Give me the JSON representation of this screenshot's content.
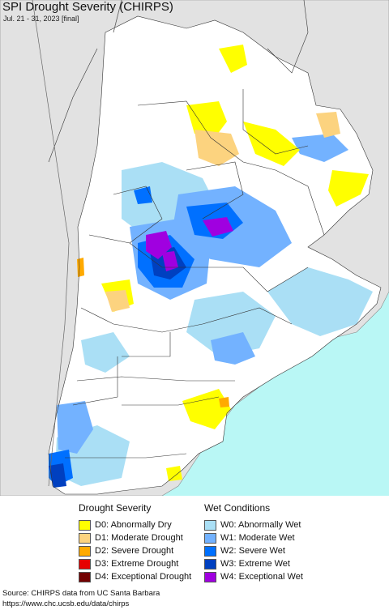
{
  "header": {
    "title": "SPI Drought Severity (CHIRPS)",
    "subtitle": "Jul. 21 - 31, 2023 [final]"
  },
  "legend": {
    "drought_heading": "Drought Severity",
    "wet_heading": "Wet Conditions",
    "drought_items": [
      {
        "label": "D0: Abnormally Dry",
        "color": "#ffff00"
      },
      {
        "label": "D1: Moderate Drought",
        "color": "#fcd37f"
      },
      {
        "label": "D2: Severe Drought",
        "color": "#ffaa00"
      },
      {
        "label": "D3: Extreme Drought",
        "color": "#e60000"
      },
      {
        "label": "D4: Exceptional Drought",
        "color": "#730000"
      }
    ],
    "wet_items": [
      {
        "label": "W0: Abnormally Wet",
        "color": "#aadff5"
      },
      {
        "label": "W1: Moderate Wet",
        "color": "#73b2ff"
      },
      {
        "label": "W2: Severe Wet",
        "color": "#0070ff"
      },
      {
        "label": "W3: Extreme Wet",
        "color": "#0040c0"
      },
      {
        "label": "W4: Exceptional Wet",
        "color": "#a000e0"
      }
    ]
  },
  "footer": {
    "source": "Source: CHIRPS data from UC Santa Barbara",
    "url": "https://www.chc.ucsb.edu/data/chirps"
  },
  "map": {
    "colors": {
      "ocean": "#b9f7f5",
      "land_outside": "#e2e2e2",
      "land_region": "#ffffff",
      "border": "#333333"
    }
  }
}
